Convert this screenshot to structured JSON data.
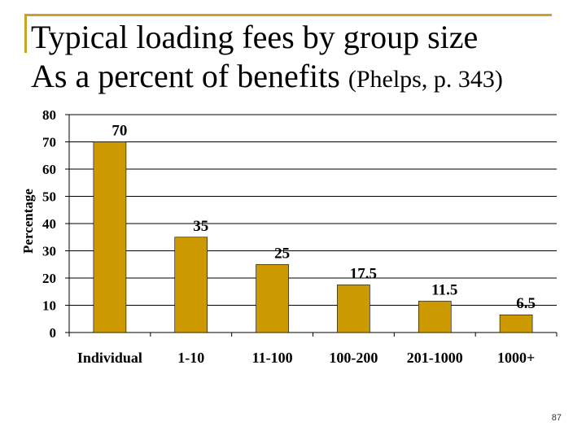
{
  "slide": {
    "title_line1": "Typical loading fees by group size",
    "title_line2": "As a percent of benefits",
    "title_citation": "(Phelps, p. 343)",
    "page_number": "87"
  },
  "colors": {
    "bar": "#cc9900",
    "frame": "#c9a227",
    "gridline": "#000000"
  },
  "chart_data": {
    "type": "bar",
    "categories": [
      "Individual",
      "1-10",
      "11-100",
      "100-200",
      "201-1000",
      "1000+"
    ],
    "values": [
      70,
      35,
      25,
      17.5,
      11.5,
      6.5
    ],
    "data_labels": [
      "70",
      "35",
      "25",
      "17.5",
      "11.5",
      "6.5"
    ],
    "yticks": [
      "0",
      "10",
      "20",
      "30",
      "40",
      "50",
      "60",
      "70",
      "80"
    ],
    "ylabel": "Percentage",
    "xlabel": "",
    "ylim": [
      0,
      80
    ],
    "grid": true
  }
}
